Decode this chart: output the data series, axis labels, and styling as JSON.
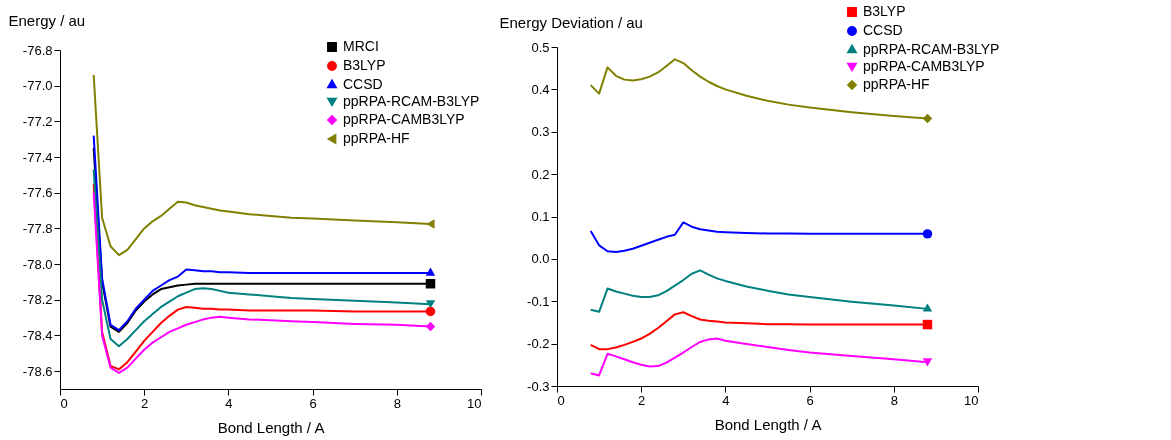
{
  "chart_data": [
    {
      "type": "line",
      "ylabel": "Energy / au",
      "xlabel": "Bond Length / A",
      "xlim": [
        0,
        10
      ],
      "xticks": [
        0,
        2,
        4,
        6,
        8,
        10
      ],
      "ylim": [
        -78.7,
        -76.8
      ],
      "yticks": [
        {
          "value": -76.8,
          "label": "-76.8"
        },
        {
          "value": -77.0,
          "label": "-77.0"
        },
        {
          "value": -77.2,
          "label": "-77.2"
        },
        {
          "value": -77.4,
          "label": "-77.4"
        },
        {
          "value": -77.6,
          "label": "-77.6"
        },
        {
          "value": -77.8,
          "label": "-77.8"
        },
        {
          "value": -78.0,
          "label": "-78.0"
        },
        {
          "value": -78.2,
          "label": "-78.2"
        },
        {
          "value": -78.4,
          "label": "-78.4"
        },
        {
          "value": -78.6,
          "label": "-78.6"
        }
      ],
      "legend": "top right",
      "x": [
        0.8,
        1.0,
        1.2,
        1.4,
        1.6,
        1.8,
        2.0,
        2.2,
        2.4,
        2.6,
        2.8,
        3.0,
        3.2,
        3.4,
        3.6,
        3.8,
        4.0,
        4.5,
        5.0,
        5.5,
        6.0,
        7.0,
        8.0,
        8.8
      ],
      "series": [
        {
          "name": "MRCI",
          "color": "#000000",
          "values": [
            -77.35,
            -78.1,
            -78.35,
            -78.38,
            -78.33,
            -78.26,
            -78.21,
            -78.17,
            -78.14,
            -78.13,
            -78.12,
            -78.115,
            -78.11,
            -78.11,
            -78.11,
            -78.11,
            -78.11,
            -78.11,
            -78.11,
            -78.11,
            -78.11,
            -78.11,
            -78.11,
            -78.11
          ]
        },
        {
          "name": "B3LYP",
          "color": "#ff0000",
          "values": [
            -77.55,
            -78.38,
            -78.57,
            -78.59,
            -78.55,
            -78.49,
            -78.43,
            -78.38,
            -78.33,
            -78.29,
            -78.255,
            -78.24,
            -78.245,
            -78.25,
            -78.25,
            -78.255,
            -78.255,
            -78.26,
            -78.26,
            -78.26,
            -78.26,
            -78.265,
            -78.265,
            -78.265
          ]
        },
        {
          "name": "CCSD",
          "color": "#0000ff",
          "values": [
            -77.28,
            -78.08,
            -78.34,
            -78.37,
            -78.32,
            -78.25,
            -78.2,
            -78.15,
            -78.12,
            -78.09,
            -78.07,
            -78.03,
            -78.035,
            -78.04,
            -78.04,
            -78.045,
            -78.045,
            -78.05,
            -78.05,
            -78.05,
            -78.05,
            -78.05,
            -78.05,
            -78.05
          ]
        },
        {
          "name": "ppRPA-RCAM-B3LYP",
          "color": "#008080",
          "values": [
            -77.47,
            -78.2,
            -78.42,
            -78.46,
            -78.42,
            -78.37,
            -78.32,
            -78.28,
            -78.24,
            -78.21,
            -78.18,
            -78.16,
            -78.14,
            -78.135,
            -78.14,
            -78.15,
            -78.16,
            -78.17,
            -78.18,
            -78.19,
            -78.195,
            -78.205,
            -78.215,
            -78.225
          ]
        },
        {
          "name": "ppRPA-CAMB3LYP",
          "color": "#ff00ff",
          "values": [
            -77.6,
            -78.4,
            -78.58,
            -78.61,
            -78.58,
            -78.53,
            -78.48,
            -78.44,
            -78.41,
            -78.38,
            -78.36,
            -78.34,
            -78.325,
            -78.31,
            -78.3,
            -78.295,
            -78.3,
            -78.31,
            -78.315,
            -78.32,
            -78.325,
            -78.335,
            -78.34,
            -78.35
          ]
        },
        {
          "name": "ppRPA-HF",
          "color": "#808000",
          "values": [
            -76.94,
            -77.74,
            -77.9,
            -77.95,
            -77.92,
            -77.86,
            -77.8,
            -77.76,
            -77.73,
            -77.69,
            -77.65,
            -77.655,
            -77.67,
            -77.68,
            -77.69,
            -77.7,
            -77.705,
            -77.72,
            -77.73,
            -77.74,
            -77.745,
            -77.755,
            -77.765,
            -77.775
          ]
        }
      ]
    },
    {
      "type": "line",
      "ylabel": "Energy Deviation / au",
      "xlabel": "Bond Length / A",
      "xlim": [
        0,
        10
      ],
      "xticks": [
        0,
        2,
        4,
        6,
        8,
        10
      ],
      "ylim": [
        -0.3,
        0.5
      ],
      "yticks": [
        {
          "value": -0.3,
          "label": "-0.3"
        },
        {
          "value": -0.2,
          "label": "-0.2"
        },
        {
          "value": -0.1,
          "label": "-0.1"
        },
        {
          "value": 0.0,
          "label": "0.0"
        },
        {
          "value": 0.1,
          "label": "0.1"
        },
        {
          "value": 0.2,
          "label": "0.2"
        },
        {
          "value": 0.3,
          "label": "0.3"
        },
        {
          "value": 0.4,
          "label": "0.4"
        },
        {
          "value": 0.5,
          "label": "0.5"
        }
      ],
      "legend": "top right",
      "x": [
        0.8,
        1.0,
        1.2,
        1.4,
        1.6,
        1.8,
        2.0,
        2.2,
        2.4,
        2.6,
        2.8,
        3.0,
        3.2,
        3.4,
        3.6,
        3.8,
        4.0,
        4.5,
        5.0,
        5.5,
        6.0,
        7.0,
        8.0,
        8.8
      ],
      "series": [
        {
          "name": "B3LYP",
          "color": "#ff0000",
          "values": [
            -0.203,
            -0.213,
            -0.213,
            -0.209,
            -0.203,
            -0.196,
            -0.188,
            -0.177,
            -0.163,
            -0.147,
            -0.131,
            -0.126,
            -0.135,
            -0.143,
            -0.146,
            -0.148,
            -0.15,
            -0.152,
            -0.154,
            -0.154,
            -0.155,
            -0.155,
            -0.155,
            -0.155
          ]
        },
        {
          "name": "CCSD",
          "color": "#0000ff",
          "values": [
            0.066,
            0.032,
            0.018,
            0.016,
            0.019,
            0.024,
            0.031,
            0.038,
            0.045,
            0.052,
            0.057,
            0.086,
            0.076,
            0.07,
            0.067,
            0.064,
            0.063,
            0.061,
            0.06,
            0.06,
            0.059,
            0.059,
            0.059,
            0.059
          ]
        },
        {
          "name": "ppRPA-RCAM-B3LYP",
          "color": "#008080",
          "values": [
            -0.12,
            -0.125,
            -0.07,
            -0.077,
            -0.082,
            -0.087,
            -0.09,
            -0.09,
            -0.086,
            -0.076,
            -0.063,
            -0.05,
            -0.035,
            -0.027,
            -0.037,
            -0.046,
            -0.052,
            -0.065,
            -0.075,
            -0.084,
            -0.09,
            -0.101,
            -0.11,
            -0.118
          ]
        },
        {
          "name": "ppRPA-CAMB3LYP",
          "color": "#ff00ff",
          "values": [
            -0.27,
            -0.275,
            -0.224,
            -0.23,
            -0.237,
            -0.244,
            -0.25,
            -0.254,
            -0.253,
            -0.245,
            -0.233,
            -0.221,
            -0.208,
            -0.196,
            -0.19,
            -0.188,
            -0.193,
            -0.201,
            -0.208,
            -0.215,
            -0.221,
            -0.229,
            -0.237,
            -0.244
          ]
        },
        {
          "name": "ppRPA-HF",
          "color": "#808000",
          "values": [
            0.41,
            0.39,
            0.452,
            0.432,
            0.423,
            0.421,
            0.424,
            0.43,
            0.44,
            0.455,
            0.471,
            0.462,
            0.445,
            0.43,
            0.418,
            0.408,
            0.4,
            0.385,
            0.373,
            0.364,
            0.357,
            0.346,
            0.337,
            0.331
          ]
        }
      ]
    }
  ]
}
